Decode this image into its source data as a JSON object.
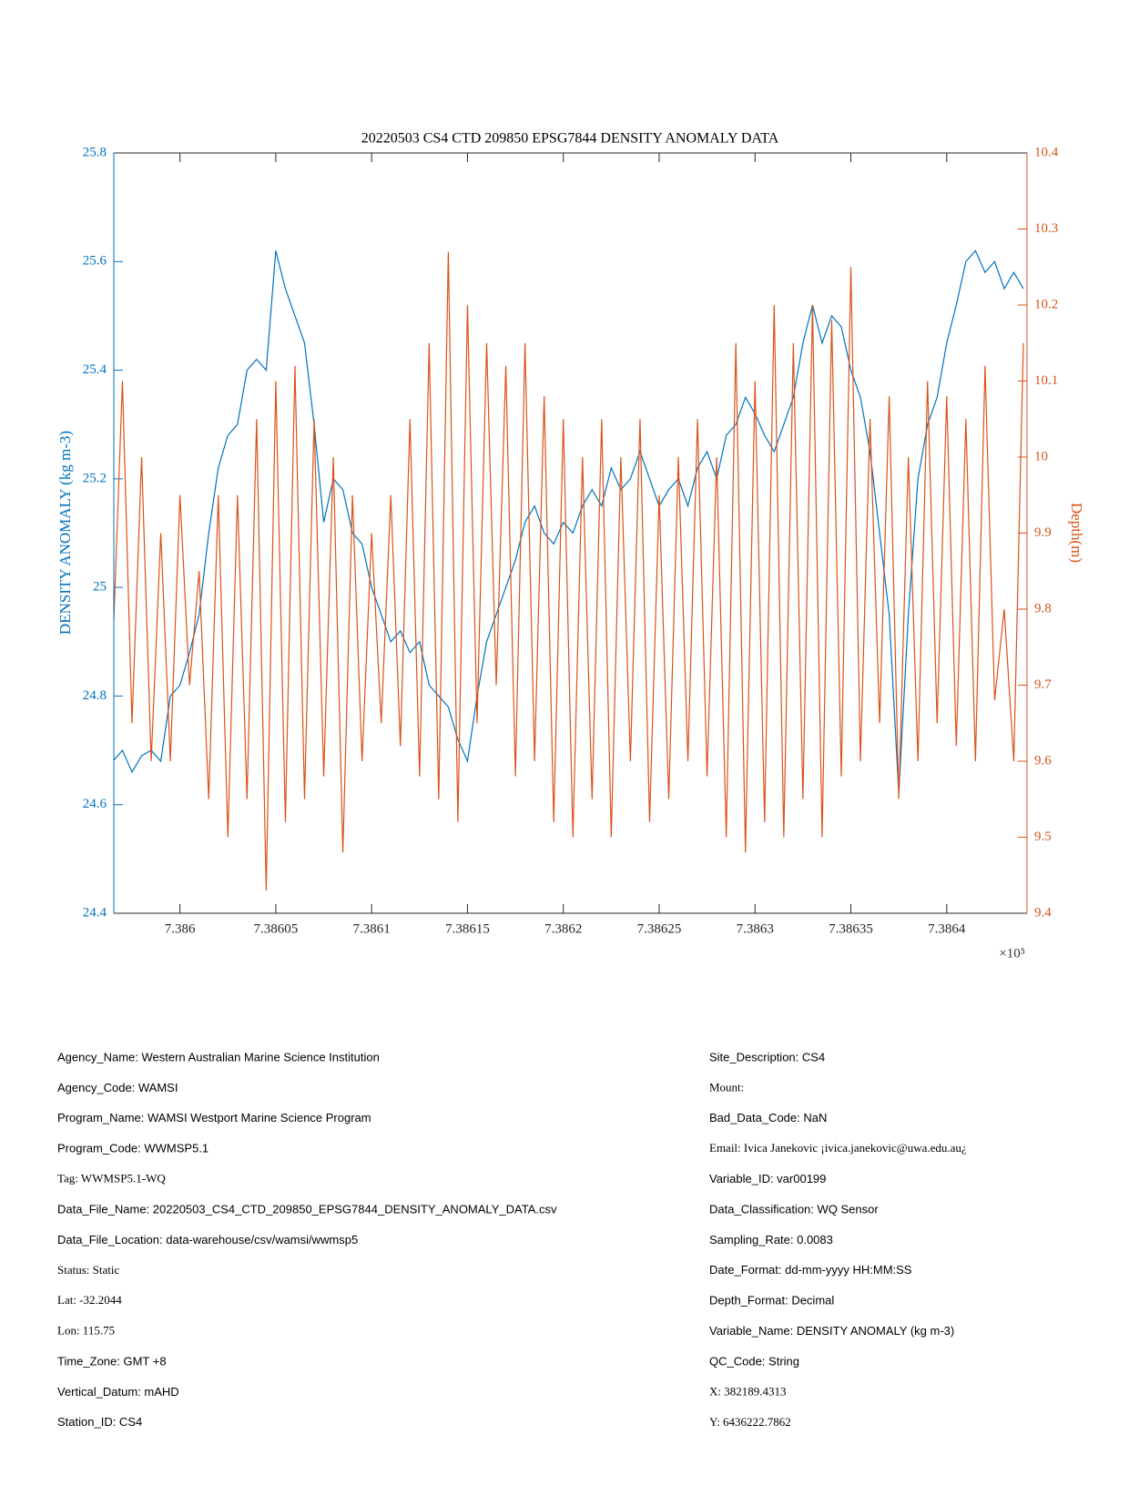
{
  "chart_data": {
    "type": "line",
    "title": "20220503 CS4 CTD 209850 EPSG7844 DENSITY ANOMALY DATA",
    "ylabel": "DENSITY ANOMALY (kg m-3)",
    "y2label": "Depth(m)",
    "x_exponent_label": "×10⁵",
    "xlim": [
      738596.55,
      738644.19
    ],
    "xticks": [
      {
        "value": 738600,
        "label": "7.386"
      },
      {
        "value": 738605,
        "label": "7.38605"
      },
      {
        "value": 738610,
        "label": "7.3861"
      },
      {
        "value": 738615,
        "label": "7.38615"
      },
      {
        "value": 738620,
        "label": "7.3862"
      },
      {
        "value": 738625,
        "label": "7.38625"
      },
      {
        "value": 738630,
        "label": "7.3863"
      },
      {
        "value": 738635,
        "label": "7.38635"
      },
      {
        "value": 738640,
        "label": "7.3864"
      }
    ],
    "ylim": [
      24.4,
      25.8
    ],
    "yticks": [
      24.4,
      24.6,
      24.8,
      25,
      25.2,
      25.4,
      25.6,
      25.8
    ],
    "y2lim": [
      9.4,
      10.4
    ],
    "y2ticks": [
      9.4,
      9.5,
      9.6,
      9.7,
      9.8,
      9.9,
      10,
      10.1,
      10.2,
      10.3,
      10.4
    ],
    "x": [
      738596.5,
      738597,
      738597.5,
      738598,
      738598.5,
      738599,
      738599.5,
      738600,
      738600.5,
      738601,
      738601.5,
      738602,
      738602.5,
      738603,
      738603.5,
      738604,
      738604.5,
      738605,
      738605.5,
      738606,
      738606.5,
      738607,
      738607.5,
      738608,
      738608.5,
      738609,
      738609.5,
      738610,
      738610.5,
      738611,
      738611.5,
      738612,
      738612.5,
      738613,
      738613.5,
      738614,
      738614.5,
      738615,
      738615.5,
      738616,
      738616.5,
      738617,
      738617.5,
      738618,
      738618.5,
      738619,
      738619.5,
      738620,
      738620.5,
      738621,
      738621.5,
      738622,
      738622.5,
      738623,
      738623.5,
      738624,
      738624.5,
      738625,
      738625.5,
      738626,
      738626.5,
      738627,
      738627.5,
      738628,
      738628.5,
      738629,
      738629.5,
      738630,
      738630.5,
      738631,
      738631.5,
      738632,
      738632.5,
      738633,
      738633.5,
      738634,
      738634.5,
      738635,
      738635.5,
      738636,
      738636.5,
      738637,
      738637.5,
      738638,
      738638.5,
      738639,
      738639.5,
      738640,
      738640.5,
      738641,
      738641.5,
      738642,
      738642.5,
      738643,
      738643.5,
      738644
    ],
    "series": [
      {
        "color": "#0072bd",
        "values": [
          24.68,
          24.7,
          24.66,
          24.69,
          24.7,
          24.68,
          24.8,
          24.82,
          24.88,
          24.95,
          25.1,
          25.22,
          25.28,
          25.3,
          25.4,
          25.42,
          25.4,
          25.62,
          25.55,
          25.5,
          25.45,
          25.3,
          25.12,
          25.2,
          25.18,
          25.1,
          25.08,
          25.0,
          24.95,
          24.9,
          24.92,
          24.88,
          24.9,
          24.82,
          24.8,
          24.78,
          24.72,
          24.68,
          24.8,
          24.9,
          24.95,
          25.0,
          25.05,
          25.12,
          25.15,
          25.1,
          25.08,
          25.12,
          25.1,
          25.15,
          25.18,
          25.15,
          25.22,
          25.18,
          25.2,
          25.25,
          25.2,
          25.15,
          25.18,
          25.2,
          25.15,
          25.22,
          25.25,
          25.2,
          25.28,
          25.3,
          25.35,
          25.32,
          25.28,
          25.25,
          25.3,
          25.35,
          25.45,
          25.52,
          25.45,
          25.5,
          25.48,
          25.4,
          25.35,
          25.25,
          25.1,
          24.95,
          24.62,
          24.95,
          25.2,
          25.3,
          25.35,
          25.45,
          25.52,
          25.6,
          25.62,
          25.58,
          25.6,
          25.55,
          25.58,
          25.55
        ]
      },
      {
        "color": "#d95319",
        "axis": "y2",
        "values": [
          9.75,
          10.1,
          9.65,
          10.0,
          9.6,
          9.9,
          9.6,
          9.95,
          9.7,
          9.85,
          9.55,
          9.95,
          9.5,
          9.95,
          9.55,
          10.05,
          9.43,
          10.1,
          9.52,
          10.12,
          9.55,
          10.05,
          9.58,
          10.0,
          9.48,
          9.95,
          9.6,
          9.9,
          9.65,
          9.95,
          9.62,
          10.05,
          9.58,
          10.15,
          9.55,
          10.27,
          9.52,
          10.2,
          9.65,
          10.15,
          9.7,
          10.12,
          9.58,
          10.15,
          9.6,
          10.08,
          9.52,
          10.05,
          9.5,
          10.0,
          9.55,
          10.05,
          9.5,
          10.0,
          9.6,
          10.05,
          9.52,
          9.95,
          9.55,
          10.0,
          9.6,
          10.05,
          9.58,
          10.0,
          9.5,
          10.15,
          9.48,
          10.1,
          9.52,
          10.2,
          9.5,
          10.15,
          9.55,
          10.2,
          9.5,
          10.18,
          9.58,
          10.25,
          9.6,
          10.05,
          9.65,
          10.08,
          9.55,
          10.0,
          9.6,
          10.1,
          9.65,
          10.08,
          9.62,
          10.05,
          9.6,
          10.12,
          9.68,
          9.8,
          9.6,
          10.15
        ]
      }
    ]
  },
  "metadata": {
    "left": [
      "Agency_Name: Western Australian Marine Science Institution",
      "Agency_Code: WAMSI",
      "Program_Name: WAMSI Westport Marine Science Program",
      "Program_Code: WWMSP5.1",
      "Tag: WWMSP5.1-WQ",
      "Data_File_Name: 20220503_CS4_CTD_209850_EPSG7844_DENSITY_ANOMALY_DATA.csv",
      "Data_File_Location: data-warehouse/csv/wamsi/wwmsp5",
      "Status: Static",
      "Lat: -32.2044",
      "Lon: 115.75",
      "Time_Zone: GMT +8",
      "Vertical_Datum: mAHD",
      "Station_ID: CS4"
    ],
    "right": [
      "Site_Description: CS4",
      "Mount:",
      "Bad_Data_Code: NaN",
      "Email: Ivica Janekovic ¡ivica.janekovic@uwa.edu.au¿",
      "Variable_ID: var00199",
      "Data_Classification: WQ Sensor",
      "Sampling_Rate: 0.0083",
      "Date_Format: dd-mm-yyyy HH:MM:SS",
      "Depth_Format: Decimal",
      "Variable_Name: DENSITY ANOMALY (kg m-3)",
      "QC_Code: String",
      "X: 382189.4313",
      "Y: 6436222.7862"
    ]
  }
}
